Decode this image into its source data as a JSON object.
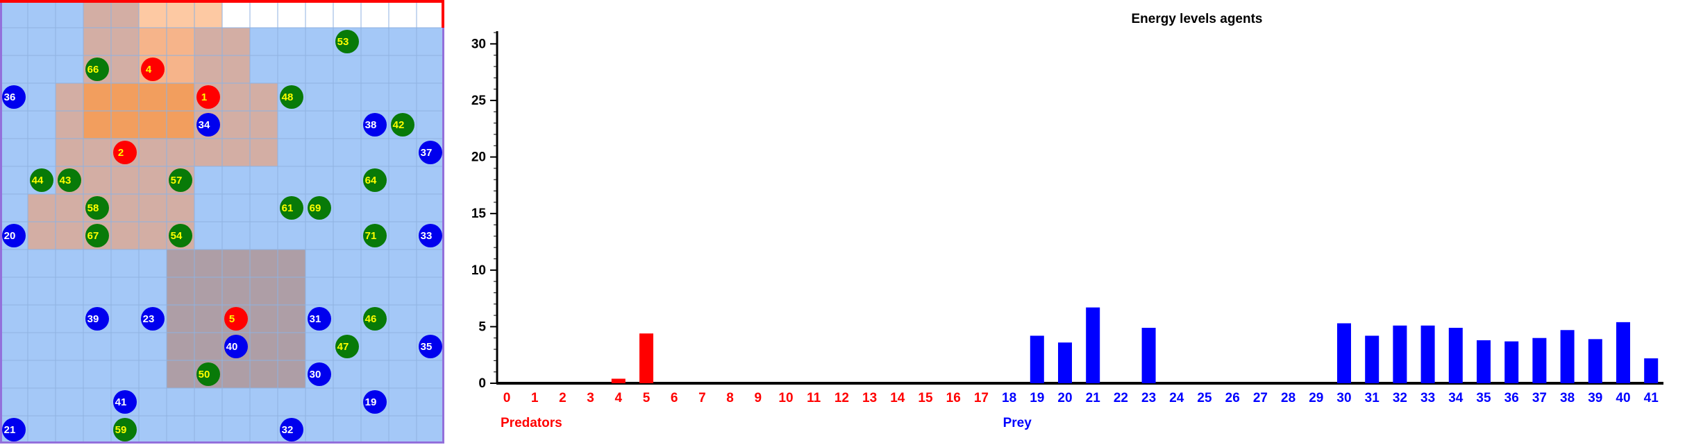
{
  "grid": {
    "rows": 16,
    "cols": 16,
    "cells": [
      "LLLMMFFFWWWWWWWW",
      "LLLMMNNMMLLLLLLL",
      "LLLMMNNMMLLLLLLL",
      "LLMOOOOMMMLLLLLL",
      "LLMOOOOMMMLLLLLL",
      "LLMMMMMMMMLLLLLL",
      "LLMMMMMLLLLLLLLL",
      "LMMMMMMLLLLLLLLL",
      "LMMMMMMLLLLLLLLL",
      "LLLLLLGGGGGLLLLL",
      "LLLLLLGGGGGLLLLL",
      "LLLLLLGGGGGLLLLL",
      "LLLLLLGGGGGLLLLL",
      "LLLLLLGGGGGLLLLL",
      "LLLLLLLLLLLLLLLL",
      "LLLLLLLLLLLLLLLL"
    ],
    "cell_colors": {
      "W": "#ffffff",
      "F": "#fdc9a3",
      "N": "#f6b48a",
      "M": "#d3aea4",
      "O": "#f29e5e",
      "G": "#ae9ea6",
      "L": "#a4c8f7",
      "B": "#70a6f5"
    },
    "agents": [
      {
        "id": "4",
        "kind": "predator",
        "col": 5,
        "row": 2
      },
      {
        "id": "1",
        "kind": "predator",
        "col": 7,
        "row": 3
      },
      {
        "id": "2",
        "kind": "predator",
        "col": 4,
        "row": 5
      },
      {
        "id": "5",
        "kind": "predator",
        "col": 8,
        "row": 11
      },
      {
        "id": "53",
        "kind": "plant",
        "col": 12,
        "row": 1
      },
      {
        "id": "66",
        "kind": "plant",
        "col": 3,
        "row": 2
      },
      {
        "id": "36",
        "kind": "prey",
        "col": 0,
        "row": 3
      },
      {
        "id": "48",
        "kind": "plant",
        "col": 10,
        "row": 3
      },
      {
        "id": "34",
        "kind": "prey",
        "col": 7,
        "row": 4
      },
      {
        "id": "38",
        "kind": "prey",
        "col": 13,
        "row": 4
      },
      {
        "id": "42",
        "kind": "plant",
        "col": 14,
        "row": 4
      },
      {
        "id": "37",
        "kind": "prey",
        "col": 15,
        "row": 5
      },
      {
        "id": "44",
        "kind": "plant",
        "col": 1,
        "row": 6
      },
      {
        "id": "43",
        "kind": "plant",
        "col": 2,
        "row": 6
      },
      {
        "id": "57",
        "kind": "plant",
        "col": 6,
        "row": 6
      },
      {
        "id": "64",
        "kind": "plant",
        "col": 13,
        "row": 6
      },
      {
        "id": "58",
        "kind": "plant",
        "col": 3,
        "row": 7
      },
      {
        "id": "61",
        "kind": "plant",
        "col": 10,
        "row": 7
      },
      {
        "id": "69",
        "kind": "plant",
        "col": 11,
        "row": 7
      },
      {
        "id": "20",
        "kind": "prey",
        "col": 0,
        "row": 8
      },
      {
        "id": "67",
        "kind": "plant",
        "col": 3,
        "row": 8
      },
      {
        "id": "54",
        "kind": "plant",
        "col": 6,
        "row": 8
      },
      {
        "id": "71",
        "kind": "plant",
        "col": 13,
        "row": 8
      },
      {
        "id": "33",
        "kind": "prey",
        "col": 15,
        "row": 8
      },
      {
        "id": "39",
        "kind": "prey",
        "col": 3,
        "row": 11
      },
      {
        "id": "23",
        "kind": "prey",
        "col": 5,
        "row": 11
      },
      {
        "id": "31",
        "kind": "prey",
        "col": 11,
        "row": 11
      },
      {
        "id": "46",
        "kind": "plant",
        "col": 13,
        "row": 11
      },
      {
        "id": "40",
        "kind": "prey",
        "col": 8,
        "row": 12
      },
      {
        "id": "47",
        "kind": "plant",
        "col": 12,
        "row": 12
      },
      {
        "id": "35",
        "kind": "prey",
        "col": 15,
        "row": 12
      },
      {
        "id": "50",
        "kind": "plant",
        "col": 7,
        "row": 13
      },
      {
        "id": "30",
        "kind": "prey",
        "col": 11,
        "row": 13
      },
      {
        "id": "41",
        "kind": "prey",
        "col": 4,
        "row": 14
      },
      {
        "id": "19",
        "kind": "prey",
        "col": 13,
        "row": 14
      },
      {
        "id": "21",
        "kind": "prey",
        "col": 0,
        "row": 15
      },
      {
        "id": "59",
        "kind": "plant",
        "col": 4,
        "row": 15
      },
      {
        "id": "32",
        "kind": "prey",
        "col": 10,
        "row": 15
      }
    ],
    "agent_colors": {
      "predator": {
        "fill": "#ff0000",
        "text": "#ffff00"
      },
      "prey": {
        "fill": "#0000ee",
        "text": "#ffffff"
      },
      "plant": {
        "fill": "#087a08",
        "text": "#ffff00"
      }
    },
    "border_top_color": "#ff0000",
    "border_color": "#9370db"
  },
  "chart_data": {
    "type": "bar",
    "title": "Energy levels agents",
    "xlabel": "",
    "ylabel": "",
    "ylim": [
      0,
      31
    ],
    "yticks": [
      0,
      5,
      10,
      15,
      20,
      25,
      30
    ],
    "categories": [
      "0",
      "1",
      "2",
      "3",
      "4",
      "5",
      "6",
      "7",
      "8",
      "9",
      "10",
      "11",
      "12",
      "13",
      "14",
      "15",
      "16",
      "17",
      "18",
      "19",
      "20",
      "21",
      "22",
      "23",
      "24",
      "25",
      "26",
      "27",
      "28",
      "29",
      "30",
      "31",
      "32",
      "33",
      "34",
      "35",
      "36",
      "37",
      "38",
      "39",
      "40",
      "41"
    ],
    "values": [
      0,
      0,
      0,
      0,
      0.4,
      4.4,
      0,
      0,
      0,
      0,
      0,
      0,
      0,
      0,
      0,
      0,
      0,
      0,
      0,
      4.2,
      3.6,
      6.7,
      0,
      4.9,
      0,
      0,
      0,
      0,
      0,
      0,
      5.3,
      4.2,
      5.1,
      5.1,
      4.9,
      3.8,
      3.7,
      4.0,
      4.7,
      3.9,
      5.4,
      2.2
    ],
    "groups": [
      {
        "name": "Predators",
        "from": 0,
        "to": 17,
        "color": "#ff0000"
      },
      {
        "name": "Prey",
        "from": 18,
        "to": 41,
        "color": "#0000ff"
      }
    ],
    "grid": false
  }
}
